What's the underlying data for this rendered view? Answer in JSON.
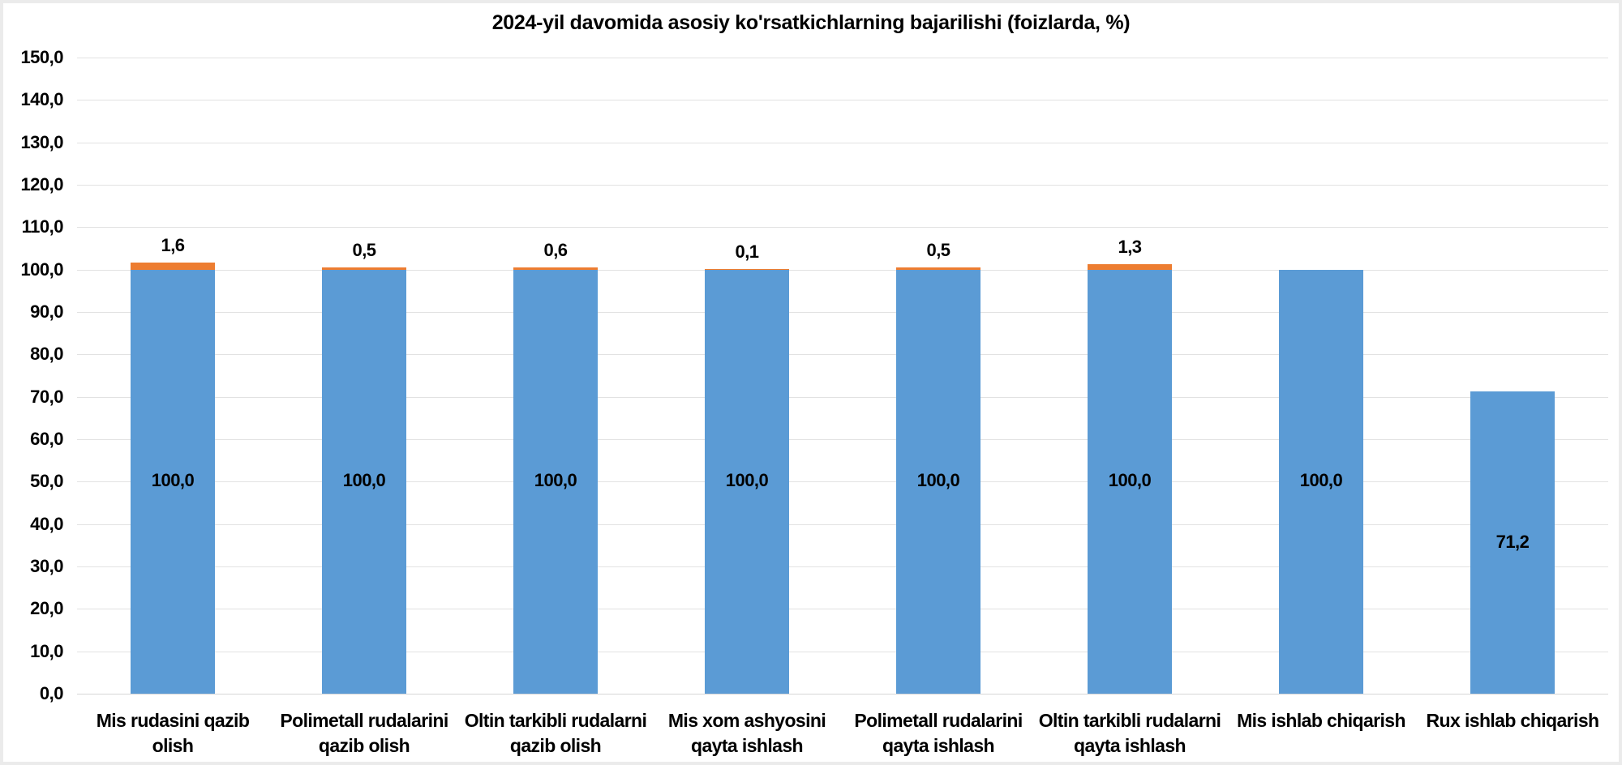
{
  "chart_data": {
    "type": "bar",
    "stacked": true,
    "title": "2024-yil davomida asosiy ko'rsatkichlarning bajarilishi (foizlarda, %)",
    "categories": [
      "Mis rudasini qazib olish",
      "Polimetall rudalarini qazib olish",
      "Oltin tarkibli rudalarni qazib olish",
      "Mis xom ashyosini qayta ishlash",
      "Polimetall rudalarini qayta ishlash",
      "Oltin tarkibli rudalarni qayta ishlash",
      "Mis ishlab chiqarish",
      "Rux ishlab chiqarish"
    ],
    "category_lines": [
      [
        "Mis rudasini qazib",
        "olish"
      ],
      [
        "Polimetall rudalarini",
        "qazib olish"
      ],
      [
        "Oltin tarkibli rudalarni",
        "qazib olish"
      ],
      [
        "Mis xom ashyosini",
        "qayta ishlash"
      ],
      [
        "Polimetall rudalarini",
        "qayta ishlash"
      ],
      [
        "Oltin tarkibli rudalarni",
        "qayta ishlash"
      ],
      [
        "Mis ishlab chiqarish"
      ],
      [
        "Rux ishlab chiqarish"
      ]
    ],
    "series": [
      {
        "id": "series-1",
        "color": "#5B9BD5",
        "values": [
          100.0,
          100.0,
          100.0,
          100.0,
          100.0,
          100.0,
          100.0,
          71.2
        ],
        "labels": [
          "100,0",
          "100,0",
          "100,0",
          "100,0",
          "100,0",
          "100,0",
          "100,0",
          "71,2"
        ]
      },
      {
        "id": "series-2",
        "color": "#ED7D31",
        "values": [
          1.6,
          0.5,
          0.6,
          0.1,
          0.5,
          1.3,
          0,
          0
        ],
        "labels": [
          "1,6",
          "0,5",
          "0,6",
          "0,1",
          "0,5",
          "1,3",
          "",
          ""
        ]
      }
    ],
    "y_axis": {
      "min": 0,
      "max": 150,
      "step": 10,
      "tick_labels": [
        "150,0",
        "140,0",
        "130,0",
        "120,0",
        "110,0",
        "100,0",
        "90,0",
        "80,0",
        "70,0",
        "60,0",
        "50,0",
        "40,0",
        "30,0",
        "20,0",
        "10,0",
        "0,0"
      ]
    },
    "grid": true,
    "legend": "none",
    "colors": {
      "background": "#FFFFFF",
      "gridline": "#E2E2E2",
      "axis_line": "#D6D6D6",
      "text": "#000000",
      "frame_border": "#EBEBEB"
    }
  }
}
